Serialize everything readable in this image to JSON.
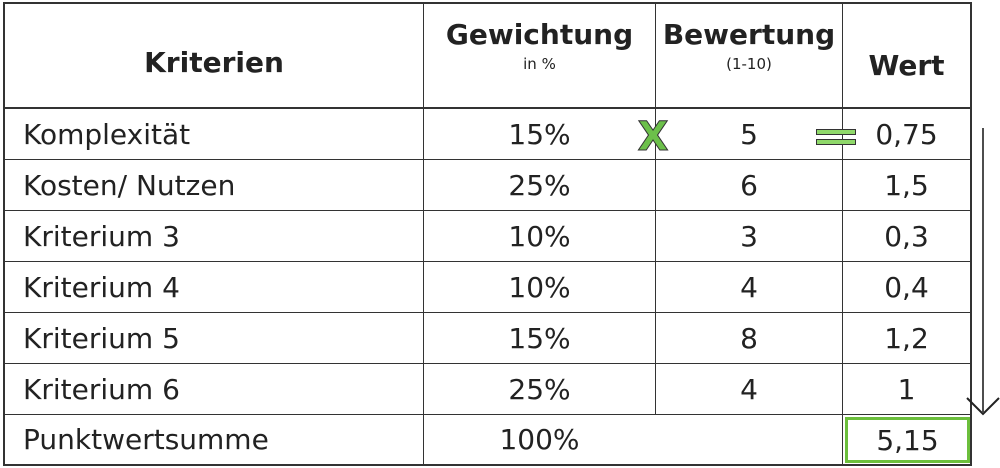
{
  "headers": {
    "kriterien": "Kriterien",
    "gewichtung": "Gewichtung",
    "gewichtung_unit": "in %",
    "bewertung": "Bewertung",
    "bewertung_scale": "(1-10)",
    "wert": "Wert"
  },
  "rows": [
    {
      "kriterium": "Komplexität",
      "gewichtung": "15%",
      "bewertung": "5",
      "wert": "0,75"
    },
    {
      "kriterium": "Kosten/ Nutzen",
      "gewichtung": "25%",
      "bewertung": "6",
      "wert": "1,5"
    },
    {
      "kriterium": "Kriterium 3",
      "gewichtung": "10%",
      "bewertung": "3",
      "wert": "0,3"
    },
    {
      "kriterium": "Kriterium 4",
      "gewichtung": "10%",
      "bewertung": "4",
      "wert": "0,4"
    },
    {
      "kriterium": "Kriterium 5",
      "gewichtung": "15%",
      "bewertung": "8",
      "wert": "1,2"
    },
    {
      "kriterium": "Kriterium 6",
      "gewichtung": "25%",
      "bewertung": "4",
      "wert": "1"
    }
  ],
  "summary": {
    "label": "Punktwertsumme",
    "gewichtung": "100%",
    "wert": "5,15"
  },
  "operators": {
    "multiply": "X",
    "equals_icon": "equals-sign-icon",
    "arrow_icon": "arrow-down-icon"
  },
  "colors": {
    "accent_green": "#6cbf3c",
    "grid": "#333333"
  }
}
